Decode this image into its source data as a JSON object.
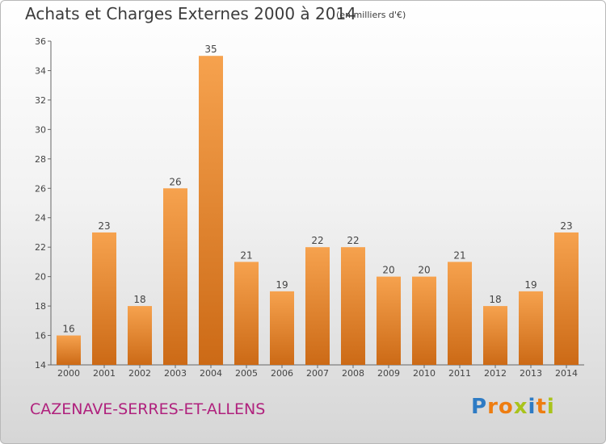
{
  "header": {
    "title": "Achats et Charges Externes 2000 à 2014",
    "subtitle": "(en milliers d'€)"
  },
  "footer": {
    "place_name": "CAZENAVE-SERRES-ET-ALLENS",
    "logo_letters": [
      "P",
      "r",
      "o",
      "x",
      "i",
      "t",
      "i"
    ],
    "logo_colors": [
      "#2e7bc4",
      "#ee7d11",
      "#ee7d11",
      "#a9c31b",
      "#2e7bc4",
      "#ee7d11",
      "#a9c31b"
    ]
  },
  "colors": {
    "bar_light": "#f6a24e",
    "bar_dark": "#cc6a16",
    "title": "#3c3c3c",
    "place": "#b0217d"
  },
  "chart_data": {
    "type": "bar",
    "title": "Achats et Charges Externes 2000 à 2014",
    "subtitle": "(en milliers d'€)",
    "categories": [
      "2000",
      "2001",
      "2002",
      "2003",
      "2004",
      "2005",
      "2006",
      "2007",
      "2008",
      "2009",
      "2010",
      "2011",
      "2012",
      "2013",
      "2014"
    ],
    "values": [
      16,
      23,
      18,
      26,
      35,
      21,
      19,
      22,
      22,
      20,
      20,
      21,
      18,
      19,
      23
    ],
    "ylim": [
      14,
      36
    ],
    "yticks": [
      14,
      16,
      18,
      20,
      22,
      24,
      26,
      28,
      30,
      32,
      34,
      36
    ],
    "xlabel": "",
    "ylabel": "",
    "grid": false,
    "data_labels": true
  }
}
